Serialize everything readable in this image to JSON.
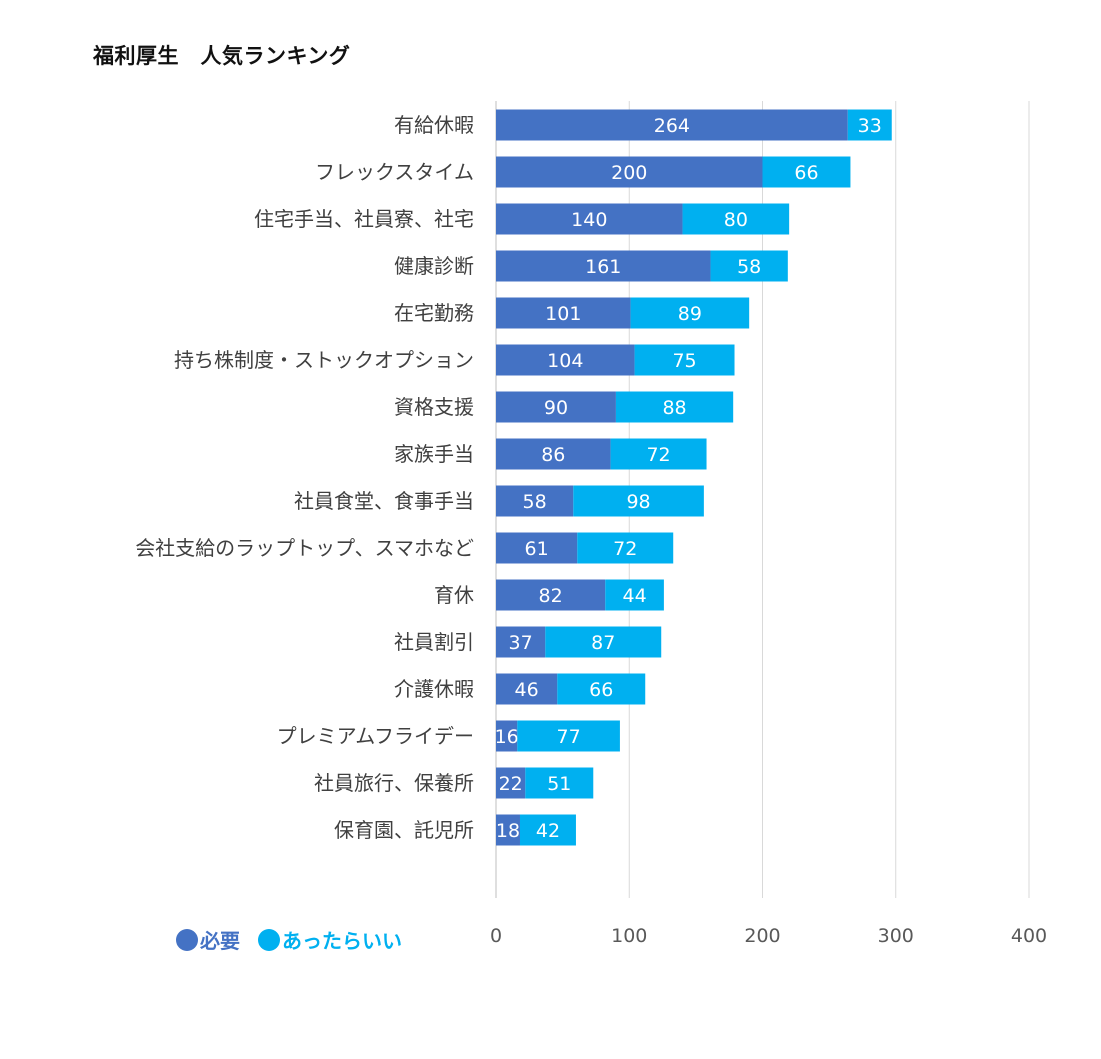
{
  "chart_data": {
    "type": "bar",
    "orientation": "horizontal",
    "stacked": true,
    "title": "福利厚生　人気ランキング",
    "categories": [
      "有給休暇",
      "フレックスタイム",
      "住宅手当、社員寮、社宅",
      "健康診断",
      "在宅勤務",
      "持ち株制度・ストックオプション",
      "資格支援",
      "家族手当",
      "社員食堂、食事手当",
      "会社支給のラップトップ、スマホなど",
      "育休",
      "社員割引",
      "介護休暇",
      "プレミアムフライデー",
      "社員旅行、保養所",
      "保育園、託児所"
    ],
    "series": [
      {
        "name": "必要",
        "color": "#4472C4",
        "values": [
          264,
          200,
          140,
          161,
          101,
          104,
          90,
          86,
          58,
          61,
          82,
          37,
          46,
          16,
          22,
          18
        ]
      },
      {
        "name": "あったらいい",
        "color": "#00B0F0",
        "values": [
          33,
          66,
          80,
          58,
          89,
          75,
          88,
          72,
          98,
          72,
          44,
          87,
          66,
          77,
          51,
          42
        ]
      }
    ],
    "xlim": [
      0,
      400
    ],
    "xticks": [
      0,
      100,
      200,
      300,
      400
    ],
    "grid": true,
    "legend_position": "bottom-left"
  }
}
